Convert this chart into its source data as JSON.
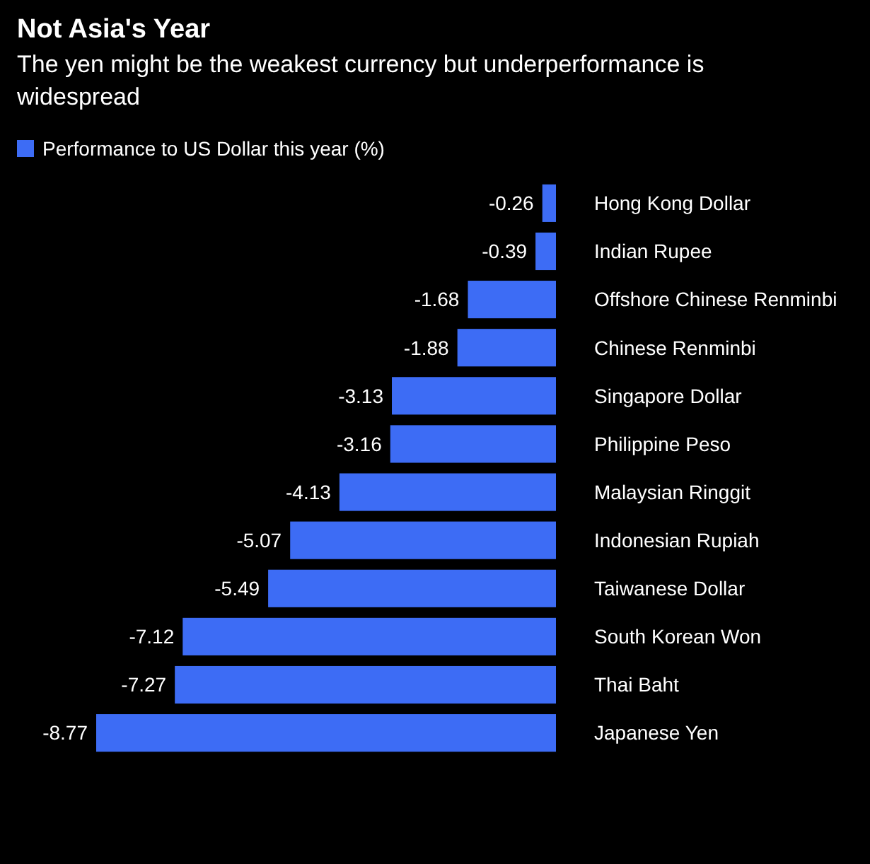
{
  "chart_data": {
    "type": "bar",
    "orientation": "horizontal",
    "title": "Not Asia's Year",
    "subtitle": "The yen might be the weakest currency but underperformance is widespread",
    "categories": [
      "Hong Kong Dollar",
      "Indian Rupee",
      "Offshore Chinese Renminbi",
      "Chinese Renminbi",
      "Singapore Dollar",
      "Philippine Peso",
      "Malaysian Ringgit",
      "Indonesian Rupiah",
      "Taiwanese Dollar",
      "South Korean Won",
      "Thai Baht",
      "Japanese Yen"
    ],
    "series": [
      {
        "name": "Performance to US Dollar this year (%)",
        "color": "#3d6cf5",
        "values": [
          -0.26,
          -0.39,
          -1.68,
          -1.88,
          -3.13,
          -3.16,
          -4.13,
          -5.07,
          -5.49,
          -7.12,
          -7.27,
          -8.77
        ]
      }
    ],
    "data_labels": true,
    "legend": "top left"
  }
}
